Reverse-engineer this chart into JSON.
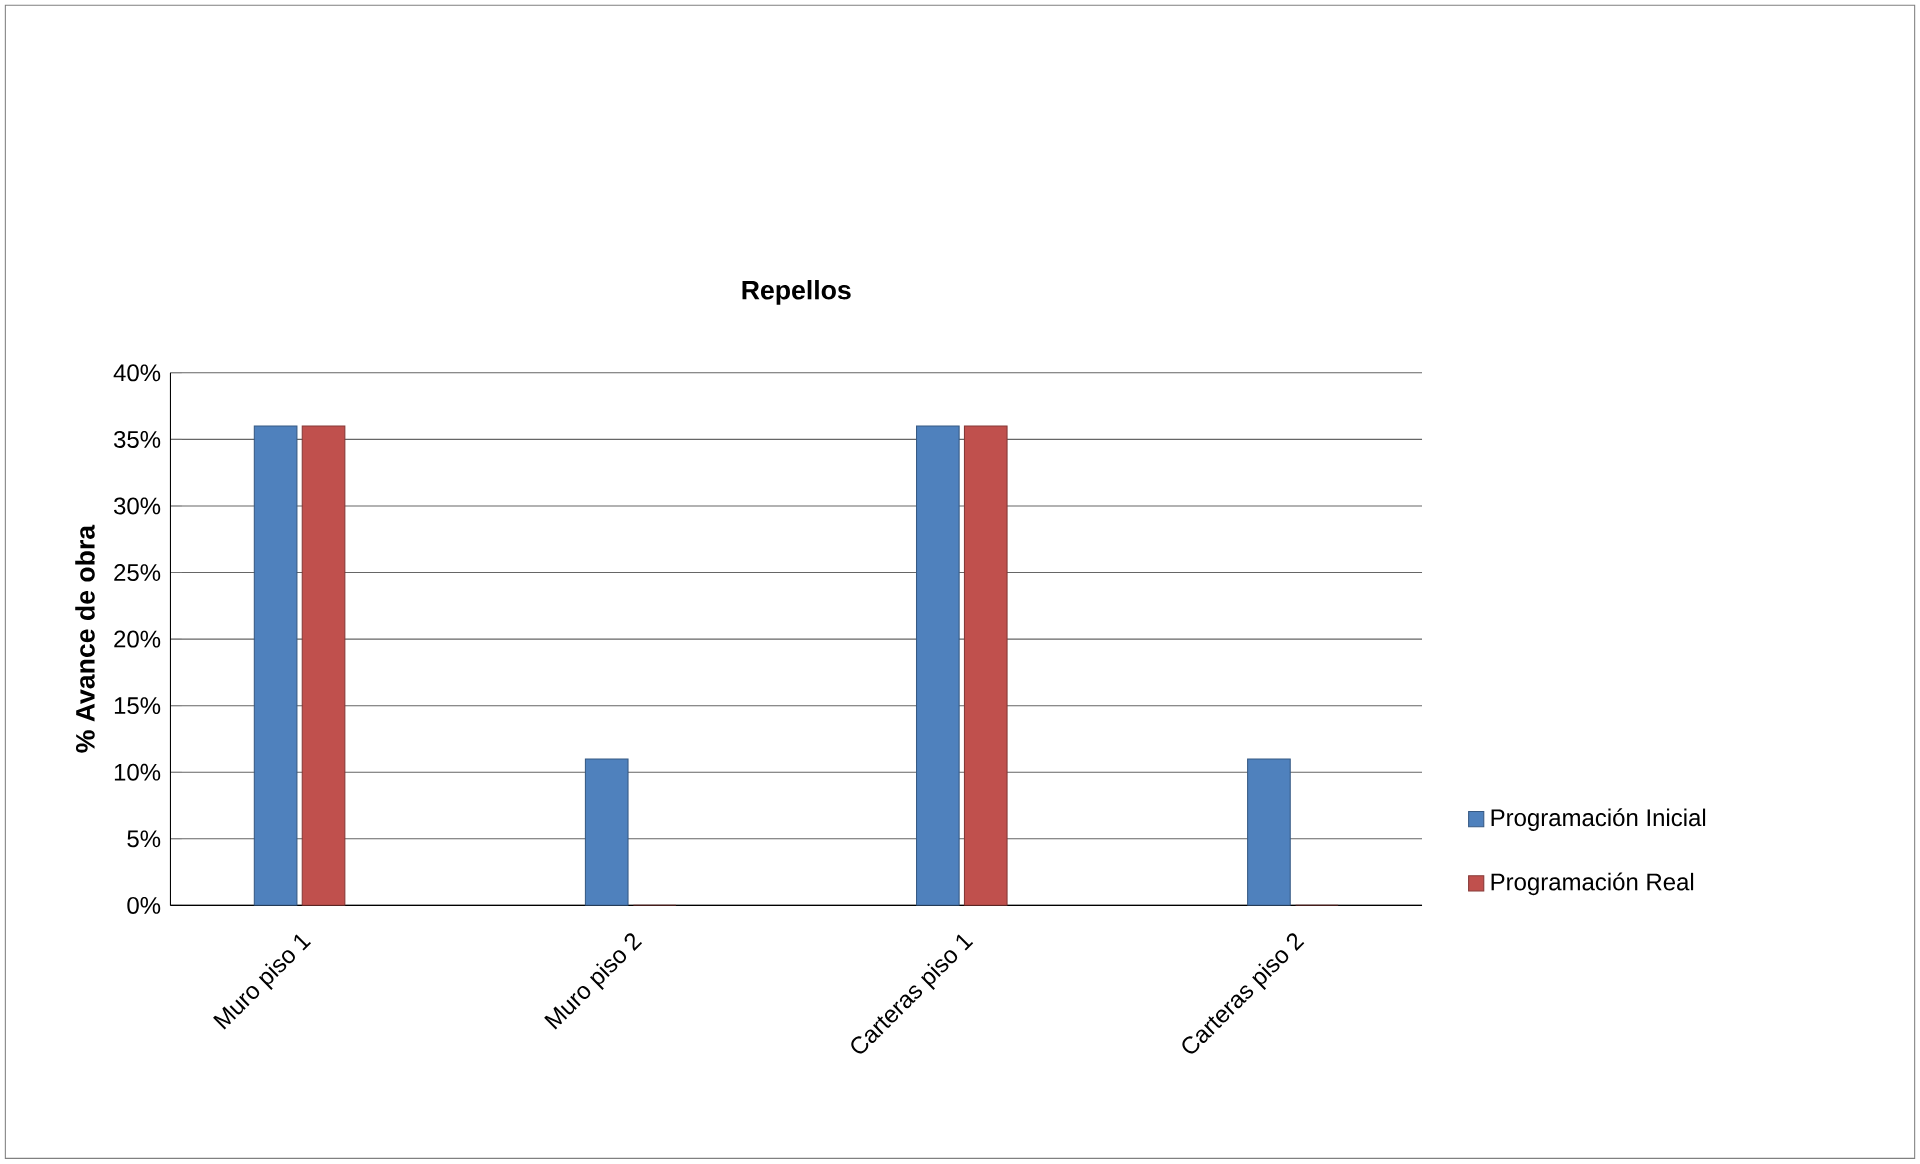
{
  "chart_data": {
    "type": "bar",
    "title": "Repellos",
    "ylabel": "% Avance de obra",
    "categories": [
      "Muro piso 1",
      "Muro piso 2",
      "Carteras piso 1",
      "Carteras piso 2"
    ],
    "series": [
      {
        "name": "Programación Inicial",
        "color": "#4f81bd",
        "values": [
          36,
          11,
          36,
          11
        ]
      },
      {
        "name": "Programación Real",
        "color": "#c0504d",
        "values": [
          36,
          0,
          36,
          0
        ]
      }
    ],
    "ylim": [
      0,
      40
    ],
    "yticks": [
      {
        "value": 0,
        "label": "0%"
      },
      {
        "value": 5,
        "label": "5%"
      },
      {
        "value": 10,
        "label": "10%"
      },
      {
        "value": 15,
        "label": "15%"
      },
      {
        "value": 20,
        "label": "20%"
      },
      {
        "value": 25,
        "label": "25%"
      },
      {
        "value": 30,
        "label": "30%"
      },
      {
        "value": 35,
        "label": "35%"
      },
      {
        "value": 40,
        "label": "40%"
      }
    ],
    "grid": "y",
    "legend": "right"
  }
}
